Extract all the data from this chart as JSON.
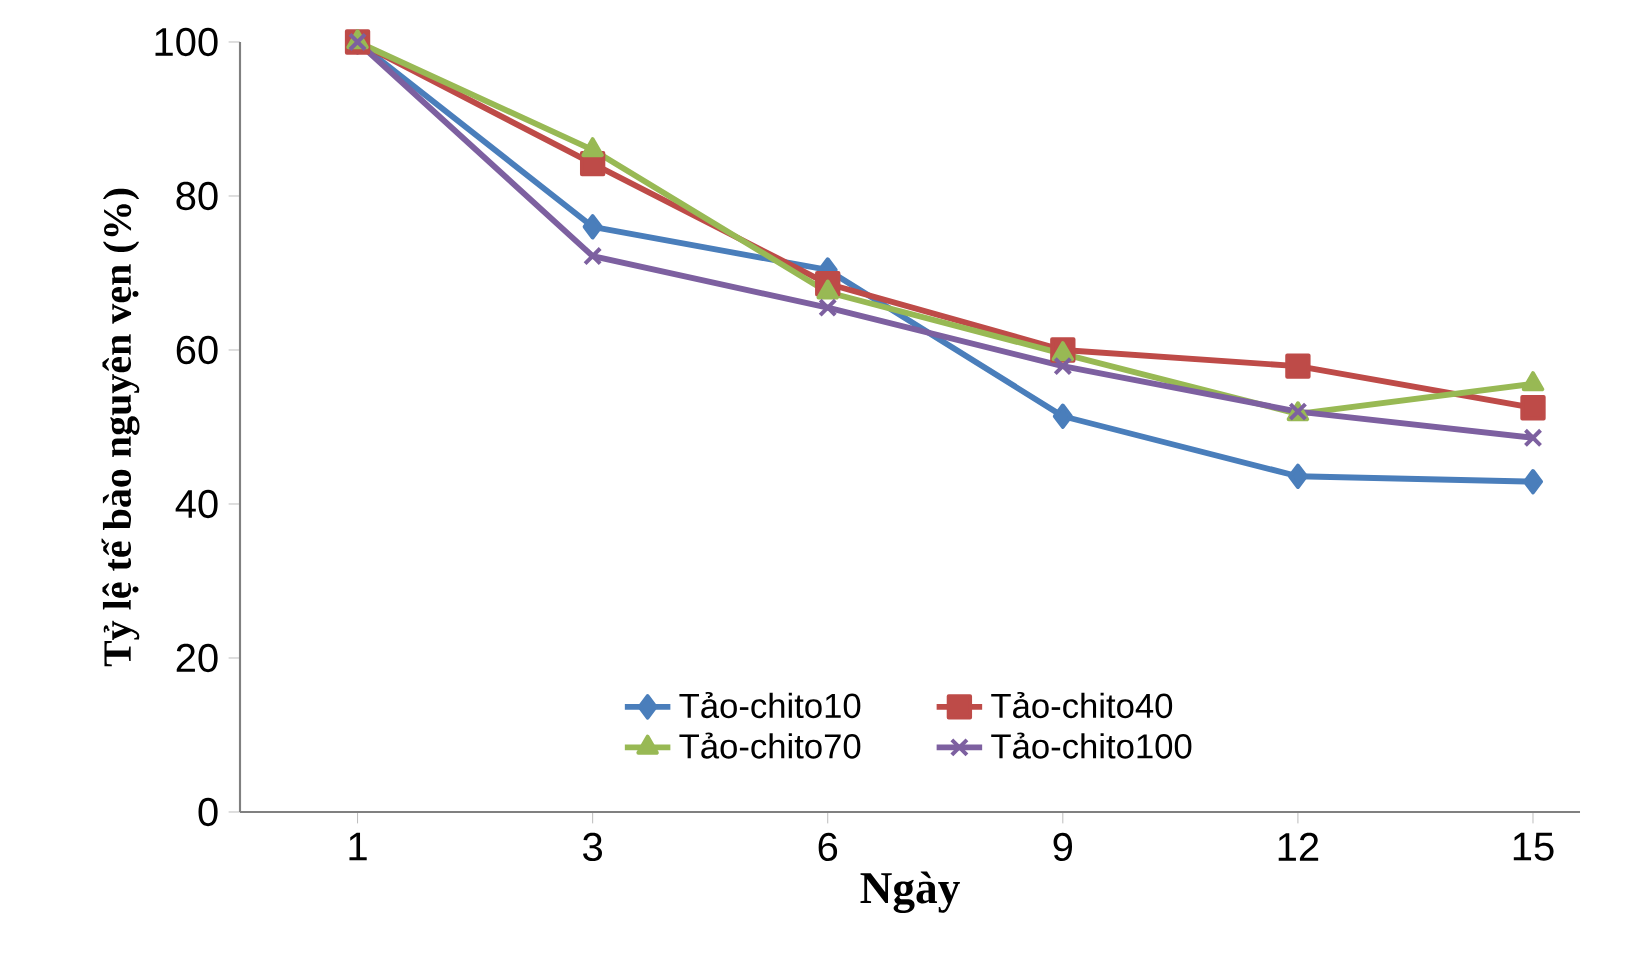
{
  "chart_data": {
    "type": "line",
    "xlabel": "Ngày",
    "ylabel": "Tỷ lệ tế bào nguyên  vẹn (%)",
    "categories": [
      "1",
      "3",
      "6",
      "9",
      "12",
      "15"
    ],
    "ylim": [
      0,
      100
    ],
    "yticks": [
      0,
      20,
      40,
      60,
      80,
      100
    ],
    "grid": false,
    "legend": "bottom",
    "series": [
      {
        "name": "Tảo-chito10",
        "color": "#4a7ebb",
        "marker": "diamond",
        "values": [
          100,
          76,
          70.4,
          51.4,
          43.6,
          42.9
        ]
      },
      {
        "name": "Tảo-chito40",
        "color": "#be4b48",
        "marker": "square",
        "values": [
          100,
          84.2,
          68.6,
          60,
          57.9,
          52.5
        ]
      },
      {
        "name": "Tảo-chito70",
        "color": "#98b954",
        "marker": "triangle",
        "values": [
          100,
          86,
          67.5,
          59.5,
          51.7,
          55.6
        ]
      },
      {
        "name": "Tảo-chito100",
        "color": "#7d60a0",
        "marker": "cross",
        "values": [
          100,
          72.2,
          65.5,
          57.9,
          52,
          48.6
        ]
      }
    ]
  }
}
